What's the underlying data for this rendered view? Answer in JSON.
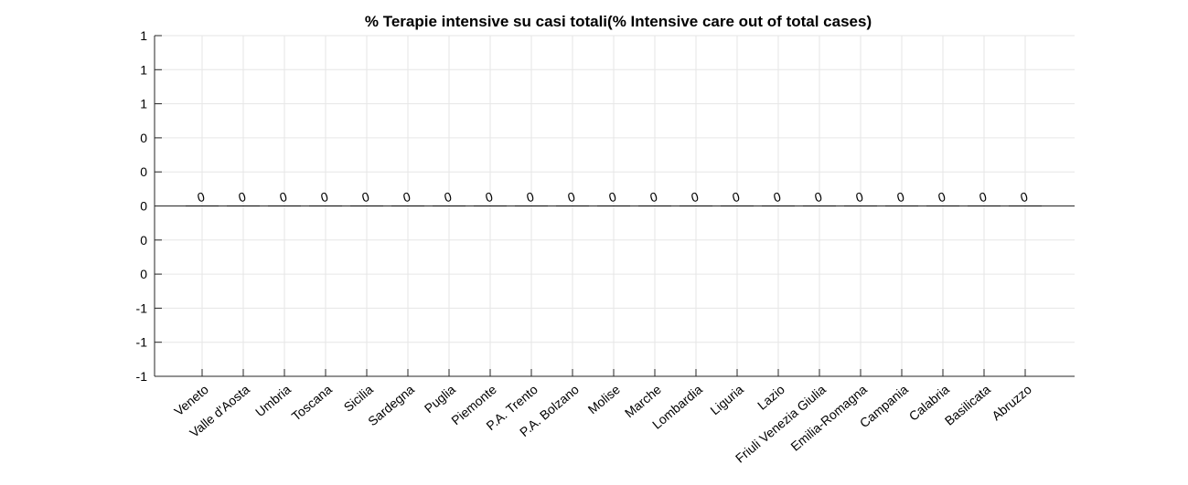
{
  "chart_data": {
    "type": "bar",
    "title": "% Terapie intensive su casi totali(% Intensive care out of total cases)",
    "xlabel": "",
    "ylabel": "",
    "categories": [
      "Veneto",
      "Valle d'Aosta",
      "Umbria",
      "Toscana",
      "Sicilia",
      "Sardegna",
      "Puglia",
      "Piemonte",
      "P.A. Trento",
      "P.A. Bolzano",
      "Molise",
      "Marche",
      "Lombardia",
      "Liguria",
      "Lazio",
      "Friuli Venezia Giulia",
      "Emilia-Romagna",
      "Campania",
      "Calabria",
      "Basilicata",
      "Abruzzo"
    ],
    "values": [
      0,
      0,
      0,
      0,
      0,
      0,
      0,
      0,
      0,
      0,
      0,
      0,
      0,
      0,
      0,
      0,
      0,
      0,
      0,
      0,
      0
    ],
    "data_labels": [
      "0",
      "0",
      "0",
      "0",
      "0",
      "0",
      "0",
      "0",
      "0",
      "0",
      "0",
      "0",
      "0",
      "0",
      "0",
      "0",
      "0",
      "0",
      "0",
      "0",
      "0"
    ],
    "ylim": [
      -1,
      1
    ],
    "yticks": [
      -1,
      -0.8,
      -0.6,
      -0.4,
      -0.2,
      0,
      0.2,
      0.4,
      0.6,
      0.8,
      1
    ],
    "ytick_labels": [
      "-1",
      "-1",
      "-1",
      "0",
      "0",
      "0",
      "0",
      "0",
      "1",
      "1",
      "1"
    ],
    "grid": true,
    "bar_color": "#000000"
  }
}
